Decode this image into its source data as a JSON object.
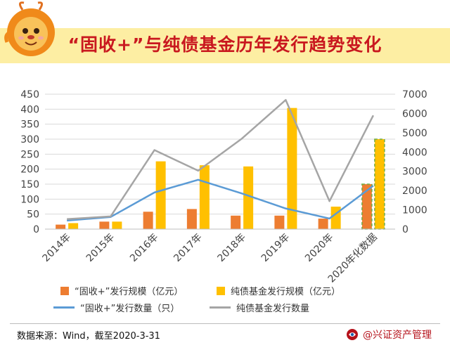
{
  "title": "“固收+”与纯债基金历年发行趋势变化",
  "footer": {
    "source": "数据来源：Wind，截至2020-3-31",
    "brand": "@兴证资产管理"
  },
  "colors": {
    "band": "#fdeea3",
    "title": "#c9181f",
    "orange": "#ed7d31",
    "yellow": "#ffc000",
    "blue": "#5b9bd5",
    "gray": "#a5a5a5",
    "dashed_outline": "#70ad47"
  },
  "icons": {
    "mascot": "lion-mascot-icon",
    "brand": "brand-logo-icon"
  },
  "chart_data": {
    "type": "bar",
    "title": "“固收+”与纯债基金历年发行趋势变化",
    "categories": [
      "2014年",
      "2015年",
      "2016年",
      "2017年",
      "2018年",
      "2019年",
      "2020年",
      "2020年化数据"
    ],
    "series": [
      {
        "name": "“固收+”发行规模（亿元）",
        "type": "bar",
        "axis": "left",
        "values": [
          15,
          25,
          58,
          67,
          45,
          45,
          35,
          150
        ]
      },
      {
        "name": "纯债基金发行规模（亿元）",
        "type": "bar",
        "axis": "left",
        "values": [
          20,
          25,
          226,
          213,
          209,
          404,
          75,
          300
        ]
      },
      {
        "name": "“固收+”发行数量（只）",
        "type": "line",
        "axis": "right",
        "values": [
          440,
          630,
          1900,
          2560,
          1850,
          1070,
          550,
          2250
        ]
      },
      {
        "name": "纯债基金发行数量",
        "type": "line",
        "axis": "right",
        "values": [
          520,
          660,
          4100,
          3030,
          4700,
          6700,
          1450,
          5900
        ]
      }
    ],
    "y_left": {
      "min": 0,
      "max": 450,
      "ticks": [
        0,
        50,
        100,
        150,
        200,
        250,
        300,
        350,
        400,
        450
      ]
    },
    "y_right": {
      "min": 0,
      "max": 7000,
      "ticks": [
        0,
        1000,
        2000,
        3000,
        4000,
        5000,
        6000,
        7000
      ]
    },
    "grid": true,
    "legend_position": "bottom",
    "annotations": {
      "dashed_outline_category": "2020年化数据"
    }
  }
}
